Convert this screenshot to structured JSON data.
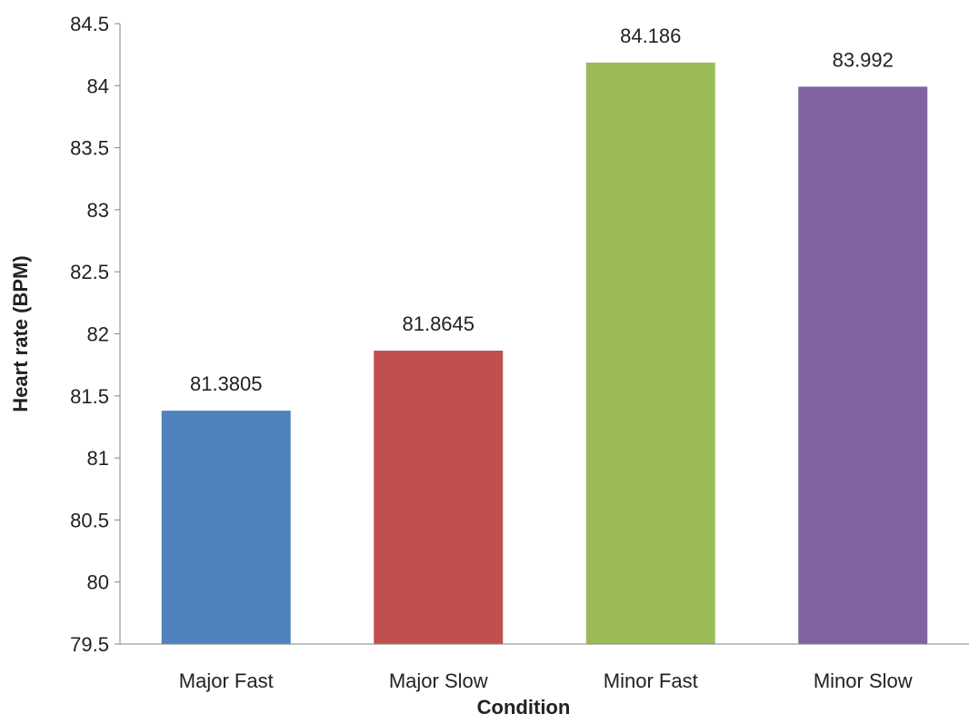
{
  "chart_data": {
    "type": "bar",
    "categories": [
      "Major Fast",
      "Major Slow",
      "Minor Fast",
      "Minor Slow"
    ],
    "values": [
      81.3805,
      81.8645,
      84.186,
      83.992
    ],
    "data_labels": [
      "81.3805",
      "81.8645",
      "84.186",
      "83.992"
    ],
    "colors": [
      "#4f81bd",
      "#c0504d",
      "#9bbb59",
      "#8064a2"
    ],
    "xlabel": "Condition",
    "ylabel": "Heart rate (BPM)",
    "ylim": [
      79.5,
      84.5
    ],
    "yticks": [
      79.5,
      80,
      80.5,
      81,
      81.5,
      82,
      82.5,
      83,
      83.5,
      84,
      84.5
    ],
    "ytick_labels": [
      "79.5",
      "80",
      "80.5",
      "81",
      "81.5",
      "82",
      "82.5",
      "83",
      "83.5",
      "84",
      "84.5"
    ],
    "grid": false,
    "legend": "none"
  }
}
